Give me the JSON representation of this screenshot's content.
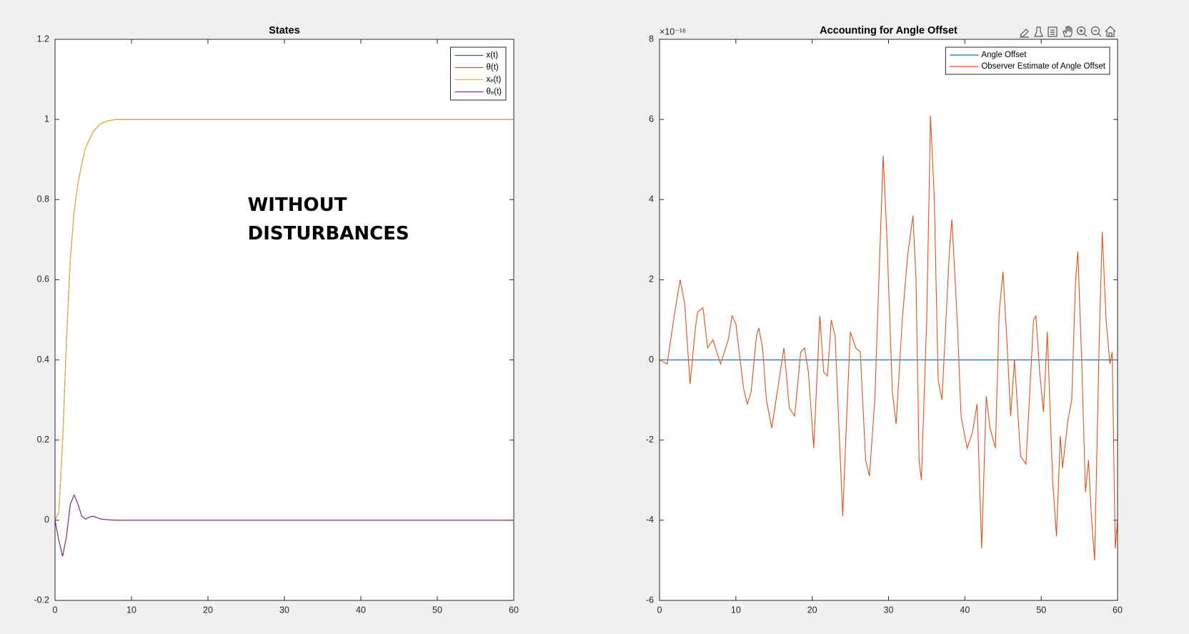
{
  "chart_data": [
    {
      "type": "line",
      "title": "States",
      "legend": "northeast",
      "grid": false,
      "x": [
        0,
        0.5,
        1,
        1.5,
        2,
        2.5,
        3,
        3.5,
        4,
        4.5,
        5,
        6,
        7,
        8,
        10,
        15,
        20,
        30,
        40,
        50,
        60
      ],
      "xlim": [
        0,
        60
      ],
      "xticks": [
        0,
        10,
        20,
        30,
        40,
        50,
        60
      ],
      "ylim": [
        -0.2,
        1.2
      ],
      "yticks": [
        -0.2,
        0,
        0.2,
        0.4,
        0.6,
        0.8,
        1,
        1.2
      ],
      "annotations": [
        "WITHOUT",
        "DISTURBANCES"
      ],
      "series": [
        {
          "name": "x(t)",
          "color": "#0072bd",
          "values": [
            0,
            0.02,
            0.2,
            0.45,
            0.65,
            0.77,
            0.84,
            0.89,
            0.93,
            0.95,
            0.97,
            0.99,
            0.997,
            1,
            1,
            1,
            1,
            1,
            1,
            1,
            1
          ]
        },
        {
          "name": "θ(t)",
          "color": "#d95319",
          "values": [
            0,
            -0.05,
            -0.09,
            -0.04,
            0.04,
            0.063,
            0.04,
            0.01,
            0.003,
            0.008,
            0.01,
            0.003,
            0.001,
            0,
            0,
            0,
            0,
            0,
            0,
            0,
            0
          ]
        },
        {
          "name": "xₑ(t)",
          "color": "#edb120",
          "values": [
            0,
            0.02,
            0.2,
            0.45,
            0.65,
            0.77,
            0.84,
            0.89,
            0.93,
            0.95,
            0.97,
            0.99,
            0.997,
            1,
            1,
            1,
            1,
            1,
            1,
            1,
            1
          ]
        },
        {
          "name": "θₑ(t)",
          "color": "#7e2f8e",
          "values": [
            0,
            -0.05,
            -0.09,
            -0.04,
            0.04,
            0.063,
            0.04,
            0.01,
            0.003,
            0.008,
            0.01,
            0.003,
            0.001,
            0,
            0,
            0,
            0,
            0,
            0,
            0,
            0
          ]
        }
      ]
    },
    {
      "type": "line",
      "title": "Accounting for Angle Offset",
      "legend": "northeast",
      "grid": false,
      "y_exponent_label": "×10⁻¹⁶",
      "x": [
        0,
        1,
        2,
        2.7,
        3.3,
        4,
        4.7,
        5,
        5.7,
        6.3,
        7,
        7.5,
        8,
        9,
        9.5,
        10,
        11,
        11.5,
        12,
        12.7,
        13,
        13.5,
        14,
        14.7,
        15.5,
        16.3,
        17,
        17.7,
        18.5,
        19,
        19.5,
        20.2,
        21,
        21.5,
        22,
        22.5,
        23,
        24,
        24.5,
        25,
        25.7,
        26.3,
        27,
        27.5,
        28.2,
        29.3,
        29.8,
        30.5,
        31,
        31.8,
        32.5,
        33.2,
        33.6,
        34,
        34.3,
        35,
        35.5,
        36,
        36.5,
        37,
        38,
        38.3,
        39,
        39.5,
        40.3,
        41,
        41.6,
        42.2,
        42.8,
        43.3,
        44,
        44.5,
        45,
        45.5,
        46,
        46.5,
        47.3,
        48,
        49,
        49.3,
        49.8,
        50.3,
        50.8,
        51.5,
        52,
        52.5,
        52.8,
        53.5,
        54,
        54.5,
        54.8,
        55.3,
        55.8,
        56.2,
        56.6,
        57,
        57.6,
        58,
        58.5,
        59,
        59.3,
        59.7,
        60
      ],
      "xlim": [
        0,
        60
      ],
      "xticks": [
        0,
        10,
        20,
        30,
        40,
        50,
        60
      ],
      "ylim": [
        -6,
        8
      ],
      "yticks": [
        -6,
        -4,
        -2,
        0,
        2,
        4,
        6,
        8
      ],
      "series": [
        {
          "name": "Angle Offset",
          "color": "#0072bd",
          "x": [
            0,
            60
          ],
          "values": [
            0,
            0
          ]
        },
        {
          "name": "Observer Estimate of Angle Offset",
          "color": "#d95319",
          "values": [
            0,
            -0.1,
            1.2,
            2.0,
            1.4,
            -0.6,
            0.8,
            1.2,
            1.3,
            0.3,
            0.5,
            0.2,
            -0.1,
            0.5,
            1.1,
            0.9,
            -0.7,
            -1.1,
            -0.8,
            0.6,
            0.8,
            0.3,
            -1.0,
            -1.7,
            -0.7,
            0.3,
            -1.2,
            -1.4,
            0.2,
            0.3,
            -0.3,
            -2.2,
            1.1,
            -0.3,
            -0.4,
            1.0,
            0.6,
            -3.9,
            -1.5,
            0.7,
            0.3,
            0.2,
            -2.5,
            -2.9,
            -1.0,
            5.1,
            3.0,
            -0.8,
            -1.6,
            1.0,
            2.6,
            3.6,
            2.0,
            -2.5,
            -3.0,
            1.0,
            6.1,
            4.0,
            -0.5,
            -1.0,
            2.8,
            3.5,
            1.0,
            -1.4,
            -2.2,
            -1.8,
            -1.1,
            -4.7,
            -0.9,
            -1.7,
            -2.2,
            1.2,
            2.2,
            0.5,
            -1.4,
            0,
            -2.4,
            -2.6,
            1.0,
            1.1,
            -0.3,
            -1.3,
            0.7,
            -3.0,
            -4.4,
            -1.9,
            -2.7,
            -1.5,
            -1.0,
            2.0,
            2.7,
            0,
            -3.3,
            -2.5,
            -4.0,
            -5.0,
            0.5,
            3.2,
            1.0,
            -0.1,
            0.2,
            -4.7,
            -4.0
          ]
        }
      ]
    }
  ]
}
